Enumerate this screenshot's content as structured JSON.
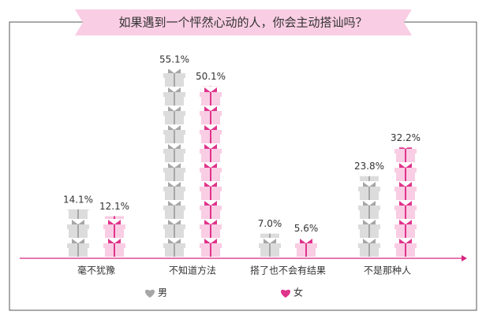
{
  "chart_data": {
    "type": "pictogram-bar",
    "title": "如果遇到一个怦然心动的人，你会主动搭讪吗？",
    "categories": [
      "毫不犹豫",
      "不知道方法",
      "搭了也不会有结果",
      "不是那种人"
    ],
    "series": [
      {
        "name": "男",
        "color": "#a6a6a6",
        "fill_color": "#dcdcdc",
        "values": [
          14.1,
          55.1,
          7.0,
          23.8
        ],
        "value_labels": [
          "14.1%",
          "55.1%",
          "7.0%",
          "23.8%"
        ]
      },
      {
        "name": "女",
        "color": "#e0338c",
        "fill_color": "#f9cde3",
        "values": [
          12.1,
          50.1,
          5.6,
          32.2
        ],
        "value_labels": [
          "12.1%",
          "50.1%",
          "5.6%",
          "32.2%"
        ]
      }
    ],
    "axis_color": "#d6247f"
  }
}
